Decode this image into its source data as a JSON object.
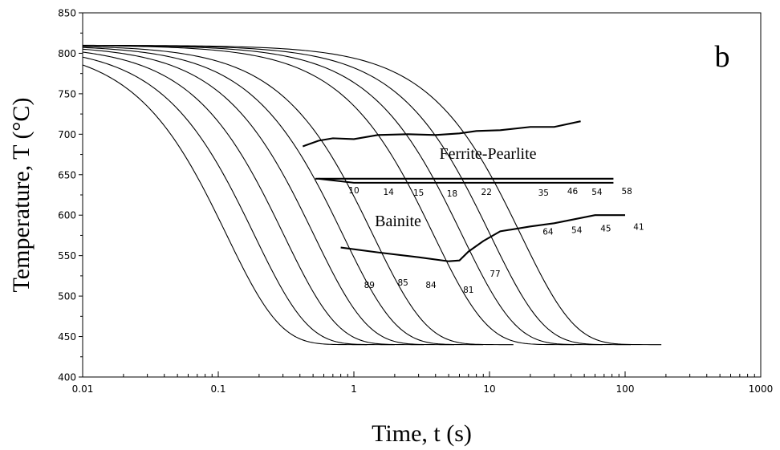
{
  "chart_data": {
    "type": "line",
    "title": "",
    "panel_label": "b",
    "xlabel": "Time, t (s)",
    "ylabel": "Temperature, T (°C)",
    "xscale": "log",
    "xlim": [
      0.01,
      1000
    ],
    "ylim": [
      400,
      850
    ],
    "grid": false,
    "x_tick_labels": [
      "0.01",
      "0.1",
      "1",
      "10",
      "100",
      "1000"
    ],
    "x_ticks": [
      0.01,
      0.1,
      1,
      10,
      100,
      1000
    ],
    "y_tick_labels": [
      "400",
      "450",
      "500",
      "550",
      "600",
      "650",
      "700",
      "750",
      "800",
      "850"
    ],
    "y_ticks": [
      400,
      450,
      500,
      550,
      600,
      650,
      700,
      750,
      800,
      850
    ],
    "start_temperature": 810,
    "end_temperature": 440,
    "cooling_curves": [
      {
        "t_end": 1.25
      },
      {
        "t_end": 2.0
      },
      {
        "t_end": 3.3
      },
      {
        "t_end": 5.5
      },
      {
        "t_end": 9.0
      },
      {
        "t_end": 15.0
      },
      {
        "t_end": 42.0
      },
      {
        "t_end": 68.0
      },
      {
        "t_end": 110.0
      },
      {
        "t_end": 185.0
      }
    ],
    "region_labels": {
      "ferrite_pearlite": "Ferrite-Pearlite",
      "bainite": "Bainite"
    },
    "ferrite_start": [
      {
        "x": 0.42,
        "y": 685
      },
      {
        "x": 0.55,
        "y": 692
      },
      {
        "x": 0.7,
        "y": 695
      },
      {
        "x": 1.0,
        "y": 694
      },
      {
        "x": 1.5,
        "y": 699
      },
      {
        "x": 2.5,
        "y": 700
      },
      {
        "x": 4.0,
        "y": 699
      },
      {
        "x": 6.0,
        "y": 701
      },
      {
        "x": 8.0,
        "y": 704
      },
      {
        "x": 12.0,
        "y": 705
      },
      {
        "x": 20.0,
        "y": 709
      },
      {
        "x": 30.0,
        "y": 709
      },
      {
        "x": 47.0,
        "y": 716
      }
    ],
    "ferrite_finish": [
      {
        "x": 0.52,
        "y": 645
      },
      {
        "x": 82.0,
        "y": 645
      }
    ],
    "bainite_start": [
      {
        "x": 0.55,
        "y": 645
      },
      {
        "x": 1.0,
        "y": 640
      },
      {
        "x": 82.0,
        "y": 640
      }
    ],
    "bainite_finish": [
      {
        "x": 0.8,
        "y": 560
      },
      {
        "x": 1.5,
        "y": 554
      },
      {
        "x": 3.0,
        "y": 548
      },
      {
        "x": 5.0,
        "y": 543
      },
      {
        "x": 6.0,
        "y": 544
      },
      {
        "x": 7.0,
        "y": 555
      },
      {
        "x": 9.0,
        "y": 568
      },
      {
        "x": 12.0,
        "y": 580
      },
      {
        "x": 20.0,
        "y": 586
      },
      {
        "x": 30.0,
        "y": 590
      },
      {
        "x": 60.0,
        "y": 600
      },
      {
        "x": 100.0,
        "y": 600
      }
    ],
    "ferrite_percent_labels": [
      {
        "text": "10",
        "x": 1.0,
        "y": 627
      },
      {
        "text": "14",
        "x": 1.8,
        "y": 625
      },
      {
        "text": "15",
        "x": 3.0,
        "y": 624
      },
      {
        "text": "18",
        "x": 5.3,
        "y": 623
      },
      {
        "text": "22",
        "x": 9.5,
        "y": 625
      },
      {
        "text": "35",
        "x": 25.0,
        "y": 624
      },
      {
        "text": "46",
        "x": 41.0,
        "y": 626
      },
      {
        "text": "54",
        "x": 62.0,
        "y": 625
      },
      {
        "text": "58",
        "x": 103.0,
        "y": 626
      }
    ],
    "bainite_percent_labels": [
      {
        "text": "89",
        "x": 1.3,
        "y": 510
      },
      {
        "text": "85",
        "x": 2.3,
        "y": 513
      },
      {
        "text": "84",
        "x": 3.7,
        "y": 510
      },
      {
        "text": "81",
        "x": 7.0,
        "y": 504
      },
      {
        "text": "77",
        "x": 11.0,
        "y": 524
      },
      {
        "text": "64",
        "x": 27.0,
        "y": 576
      },
      {
        "text": "54",
        "x": 44.0,
        "y": 578
      },
      {
        "text": "45",
        "x": 72.0,
        "y": 580
      },
      {
        "text": "41",
        "x": 126.0,
        "y": 582
      }
    ]
  }
}
